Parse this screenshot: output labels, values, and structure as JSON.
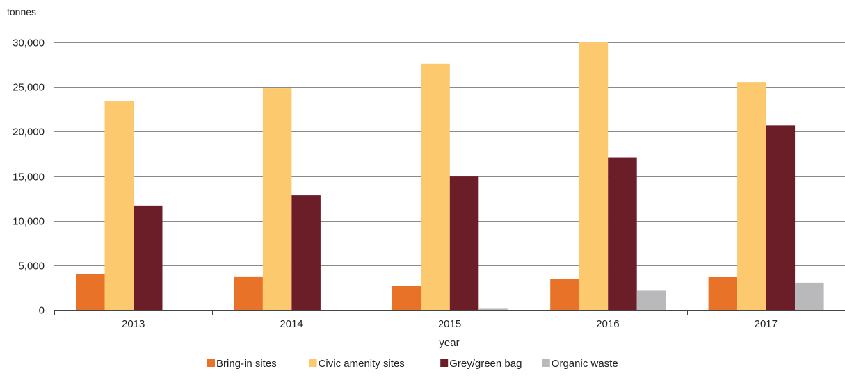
{
  "chart_data": {
    "type": "bar",
    "title": "",
    "ylabel": "tonnes",
    "xlabel": "year",
    "categories": [
      "2013",
      "2014",
      "2015",
      "2016",
      "2017"
    ],
    "series": [
      {
        "name": "Bring-in sites",
        "color": "#E87228",
        "values": [
          4050,
          3750,
          2650,
          3450,
          3700
        ]
      },
      {
        "name": "Civic amenity sites",
        "color": "#FDC96F",
        "values": [
          23400,
          24850,
          27600,
          30000,
          25550
        ]
      },
      {
        "name": "Grey/green bag",
        "color": "#6B1D28",
        "values": [
          11700,
          12850,
          14950,
          17100,
          20700
        ]
      },
      {
        "name": "Organic waste",
        "color": "#B9B9BB",
        "values": [
          0,
          0,
          200,
          2150,
          3050
        ]
      }
    ],
    "ylim": [
      0,
      30000
    ],
    "yticks": [
      0,
      5000,
      10000,
      15000,
      20000,
      25000,
      30000
    ],
    "ytick_labels": [
      "0",
      "5,000",
      "10,000",
      "15,000",
      "20,000",
      "25,000",
      "30,000"
    ],
    "grid": true,
    "legend_position": "bottom"
  }
}
